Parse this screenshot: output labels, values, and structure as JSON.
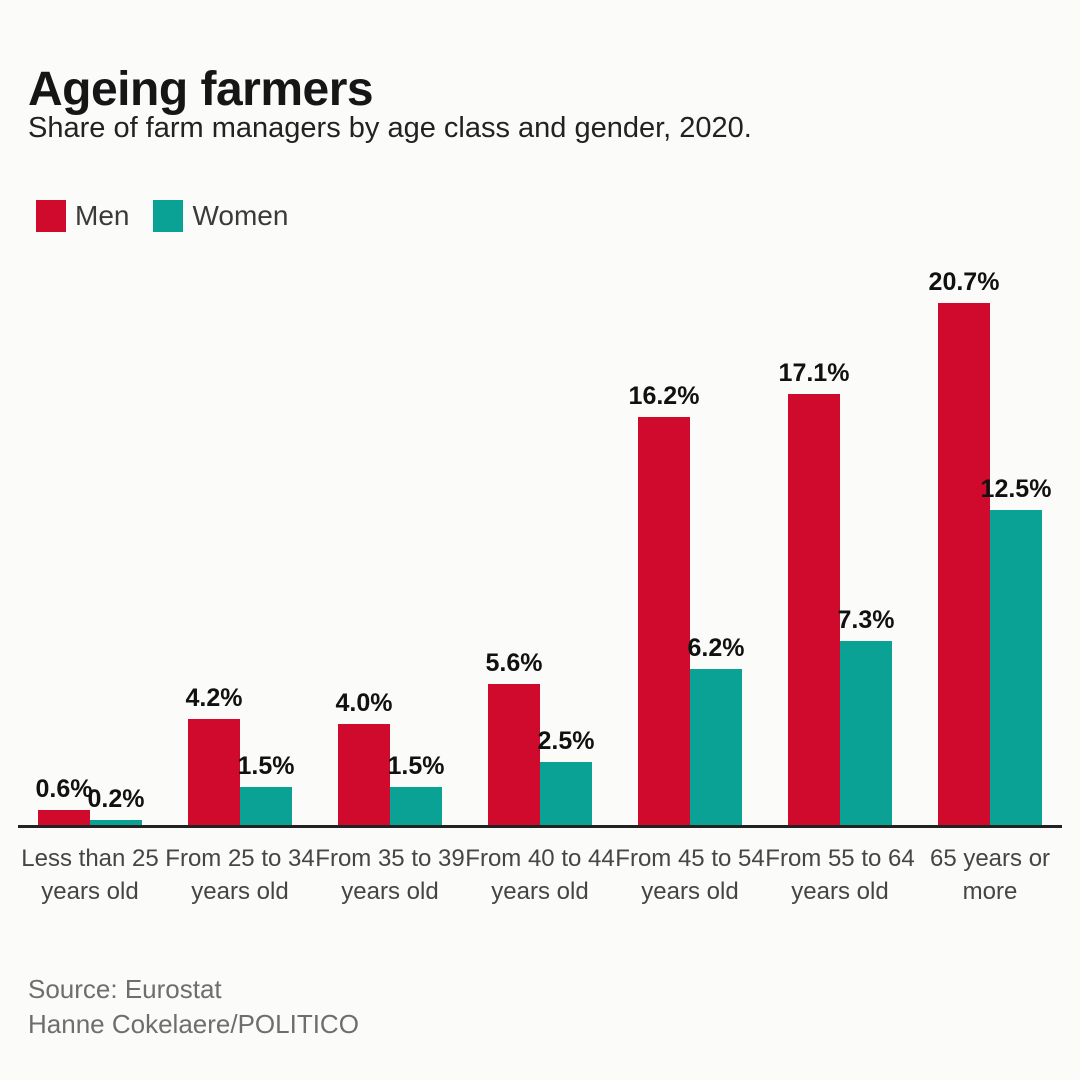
{
  "header": {
    "title": "Ageing farmers",
    "subtitle": "Share of farm managers by age class and gender, 2020."
  },
  "chart_data": {
    "type": "bar",
    "title": "Ageing farmers",
    "subtitle": "Share of farm managers by age class and gender, 2020.",
    "unit": "%",
    "categories": [
      "Less than 25 years old",
      "From 25 to 34 years old",
      "From 35 to 39 years old",
      "From 40 to 44 years old",
      "From 45 to 54 years old",
      "From 55 to 64 years old",
      "65 years or more"
    ],
    "categories_lines": [
      [
        "Less than 25",
        "years old"
      ],
      [
        "From 25 to 34",
        "years old"
      ],
      [
        "From 35 to 39",
        "years old"
      ],
      [
        "From 40 to 44",
        "years old"
      ],
      [
        "From 45 to 54",
        "years old"
      ],
      [
        "From 55 to 64",
        "years old"
      ],
      [
        "65 years or",
        "more"
      ]
    ],
    "series": [
      {
        "name": "Men",
        "color": "#d00a2c",
        "values": [
          0.6,
          4.2,
          4.0,
          5.6,
          16.2,
          17.1,
          20.7
        ],
        "labels": [
          "0.6%",
          "4.2%",
          "4.0%",
          "5.6%",
          "16.2%",
          "17.1%",
          "20.7%"
        ]
      },
      {
        "name": "Women",
        "color": "#0aa294",
        "values": [
          0.2,
          1.5,
          1.5,
          2.5,
          6.2,
          7.3,
          12.5
        ],
        "labels": [
          "0.2%",
          "1.5%",
          "1.5%",
          "2.5%",
          "6.2%",
          "7.3%",
          "12.5%"
        ]
      }
    ],
    "ylim": [
      0,
      22
    ],
    "grid": false,
    "axis_line": true,
    "value_labels": "above-bars",
    "legend_position": "top-left"
  },
  "footer": {
    "source": "Source: Eurostat",
    "credit": "Hanne Cokelaere/POLITICO"
  },
  "colors": {
    "men": "#d00a2c",
    "women": "#0aa294",
    "background": "#fbfbf9",
    "axis": "#222222",
    "value_label": "#111111",
    "category_label": "#454545",
    "source_text": "#6e6e6e"
  }
}
